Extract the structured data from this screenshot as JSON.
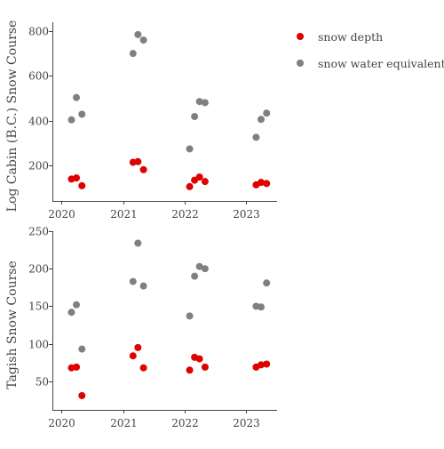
{
  "chart_data": [
    {
      "type": "scatter",
      "ylabel": "Log Cabin (B.C.) Snow Course",
      "xlim": [
        2019.85,
        2023.5
      ],
      "ylim": [
        40,
        840
      ],
      "xticks": [
        2020,
        2021,
        2022,
        2023
      ],
      "yticks": [
        200,
        400,
        600,
        800
      ],
      "series": [
        {
          "key": "snow_depth",
          "color": "#e00000",
          "points": [
            {
              "x": 2020.16,
              "y": 138
            },
            {
              "x": 2020.24,
              "y": 143
            },
            {
              "x": 2020.33,
              "y": 108
            },
            {
              "x": 2021.16,
              "y": 213
            },
            {
              "x": 2021.24,
              "y": 216
            },
            {
              "x": 2021.33,
              "y": 180
            },
            {
              "x": 2022.08,
              "y": 104
            },
            {
              "x": 2022.16,
              "y": 133
            },
            {
              "x": 2022.24,
              "y": 147
            },
            {
              "x": 2022.33,
              "y": 127
            },
            {
              "x": 2023.16,
              "y": 112
            },
            {
              "x": 2023.24,
              "y": 123
            },
            {
              "x": 2023.33,
              "y": 118
            }
          ]
        },
        {
          "key": "swe",
          "color": "#808080",
          "points": [
            {
              "x": 2020.16,
              "y": 403
            },
            {
              "x": 2020.24,
              "y": 503
            },
            {
              "x": 2020.33,
              "y": 428
            },
            {
              "x": 2021.16,
              "y": 700
            },
            {
              "x": 2021.24,
              "y": 785
            },
            {
              "x": 2021.33,
              "y": 760
            },
            {
              "x": 2022.08,
              "y": 273
            },
            {
              "x": 2022.16,
              "y": 418
            },
            {
              "x": 2022.24,
              "y": 485
            },
            {
              "x": 2022.33,
              "y": 480
            },
            {
              "x": 2023.16,
              "y": 325
            },
            {
              "x": 2023.24,
              "y": 405
            },
            {
              "x": 2023.33,
              "y": 433
            }
          ]
        }
      ]
    },
    {
      "type": "scatter",
      "ylabel": "Tagish Snow Course",
      "xlim": [
        2019.85,
        2023.5
      ],
      "ylim": [
        12,
        250
      ],
      "xticks": [
        2020,
        2021,
        2022,
        2023
      ],
      "yticks": [
        50,
        100,
        150,
        200,
        250
      ],
      "series": [
        {
          "key": "snow_depth",
          "color": "#e00000",
          "points": [
            {
              "x": 2020.16,
              "y": 68
            },
            {
              "x": 2020.24,
              "y": 69
            },
            {
              "x": 2020.33,
              "y": 31
            },
            {
              "x": 2021.16,
              "y": 84
            },
            {
              "x": 2021.24,
              "y": 95
            },
            {
              "x": 2021.33,
              "y": 68
            },
            {
              "x": 2022.08,
              "y": 65
            },
            {
              "x": 2022.16,
              "y": 82
            },
            {
              "x": 2022.24,
              "y": 80
            },
            {
              "x": 2022.33,
              "y": 69
            },
            {
              "x": 2023.16,
              "y": 69
            },
            {
              "x": 2023.24,
              "y": 72
            },
            {
              "x": 2023.33,
              "y": 73
            }
          ]
        },
        {
          "key": "swe",
          "color": "#808080",
          "points": [
            {
              "x": 2020.16,
              "y": 142
            },
            {
              "x": 2020.24,
              "y": 152
            },
            {
              "x": 2020.33,
              "y": 93
            },
            {
              "x": 2021.16,
              "y": 183
            },
            {
              "x": 2021.24,
              "y": 234
            },
            {
              "x": 2021.33,
              "y": 177
            },
            {
              "x": 2022.08,
              "y": 137
            },
            {
              "x": 2022.16,
              "y": 190
            },
            {
              "x": 2022.24,
              "y": 203
            },
            {
              "x": 2022.33,
              "y": 200
            },
            {
              "x": 2023.16,
              "y": 150
            },
            {
              "x": 2023.24,
              "y": 149
            },
            {
              "x": 2023.33,
              "y": 181
            }
          ]
        }
      ]
    }
  ],
  "legend": {
    "placement": "top-right",
    "items": [
      {
        "label": "snow depth",
        "color": "#e00000"
      },
      {
        "label": "snow water equivalent",
        "color": "#808080"
      }
    ]
  }
}
